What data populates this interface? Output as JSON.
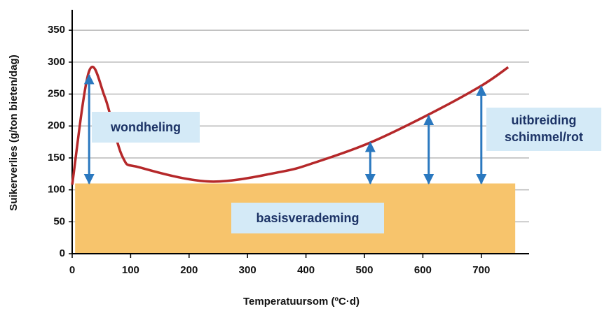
{
  "chart_data": {
    "type": "line",
    "x_label": "Temperatuursom (ºC·d)",
    "y_label": "Suikerverlies (g/ton bieten/dag)",
    "x": [
      0,
      29,
      56,
      86,
      116,
      236,
      356,
      416,
      510,
      610,
      700,
      746
    ],
    "values": [
      108,
      286,
      245,
      152,
      135,
      113,
      128,
      143,
      174,
      218,
      263,
      292
    ],
    "color": "#b5282a",
    "xlim": [
      0,
      782
    ],
    "ylim": [
      0,
      382
    ],
    "xticks": [
      0,
      100,
      200,
      300,
      400,
      500,
      600,
      700
    ],
    "yticks": [
      0,
      50,
      100,
      150,
      200,
      250,
      300,
      350
    ],
    "grid": true,
    "basis": {
      "label": "basisverademing",
      "value": 110,
      "x": [
        5,
        758
      ],
      "color": "#f7c46c"
    },
    "arrow_color": "#2a78bf",
    "arrows": [
      {
        "x": 29,
        "from": 110,
        "to": 280
      },
      {
        "x": 510,
        "from": 110,
        "to": 174
      },
      {
        "x": 610,
        "from": 110,
        "to": 216
      },
      {
        "x": 700,
        "from": 110,
        "to": 262
      }
    ],
    "annotations": {
      "wound": "wondheling",
      "spread": [
        "uitbreiding",
        "schimmel/rot"
      ]
    }
  }
}
